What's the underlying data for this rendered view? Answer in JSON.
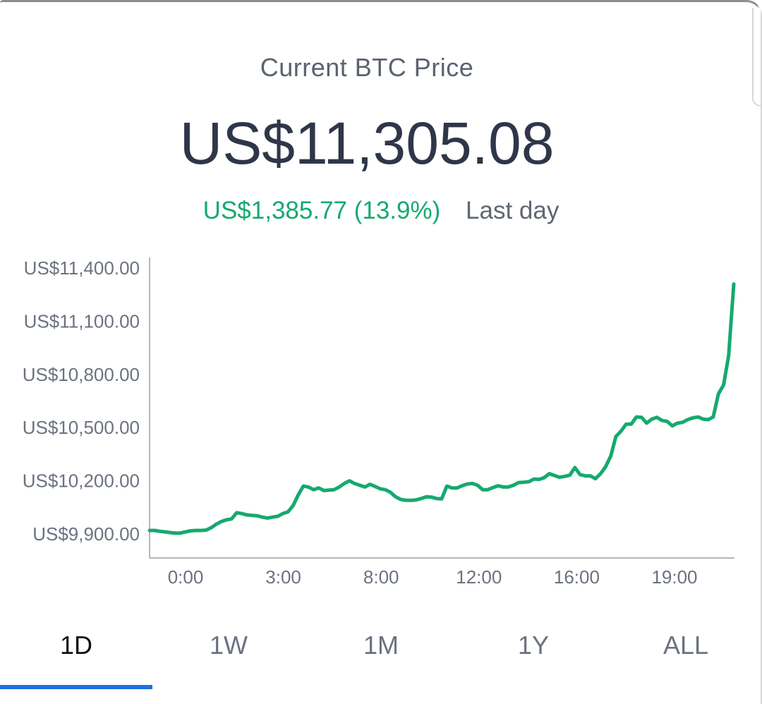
{
  "header": {
    "title": "Current BTC Price",
    "price": "US$11,305.08",
    "change_value": "US$1,385.77 (13.9%)",
    "change_label": "Last day"
  },
  "colors": {
    "accent_green": "#16a970",
    "tab_indicator": "#1f6fe0",
    "price_text": "#2e3648"
  },
  "tabs": [
    {
      "label": "1D",
      "active": true
    },
    {
      "label": "1W",
      "active": false
    },
    {
      "label": "1M",
      "active": false
    },
    {
      "label": "1Y",
      "active": false
    },
    {
      "label": "ALL",
      "active": false
    }
  ],
  "chart_data": {
    "type": "line",
    "title": "",
    "xlabel": "",
    "ylabel": "",
    "ylim": [
      9900,
      11400
    ],
    "y_ticks": [
      "US$11,400.00",
      "US$11,100.00",
      "US$10,800.00",
      "US$10,500.00",
      "US$10,200.00",
      "US$9,900.00"
    ],
    "y_tick_values": [
      11400,
      11100,
      10800,
      10500,
      10200,
      9900
    ],
    "x_ticks": [
      "0:00",
      "3:00",
      "8:00",
      "12:00",
      "16:00",
      "19:00"
    ],
    "grid": false,
    "series": [
      {
        "color": "#16a970",
        "values": [
          9920,
          9920,
          9915,
          9912,
          9908,
          9905,
          9905,
          9912,
          9918,
          9920,
          9920,
          9922,
          9935,
          9955,
          9970,
          9980,
          9985,
          10020,
          10015,
          10008,
          10005,
          10003,
          9995,
          9990,
          9995,
          10000,
          10015,
          10025,
          10060,
          10120,
          10170,
          10165,
          10150,
          10160,
          10145,
          10148,
          10150,
          10165,
          10185,
          10200,
          10185,
          10175,
          10165,
          10180,
          10168,
          10155,
          10150,
          10135,
          10110,
          10095,
          10090,
          10090,
          10092,
          10100,
          10110,
          10108,
          10100,
          10098,
          10170,
          10160,
          10160,
          10172,
          10182,
          10185,
          10175,
          10150,
          10150,
          10162,
          10172,
          10165,
          10165,
          10175,
          10190,
          10192,
          10195,
          10210,
          10208,
          10218,
          10240,
          10230,
          10220,
          10225,
          10232,
          10275,
          10235,
          10228,
          10228,
          10212,
          10240,
          10280,
          10340,
          10450,
          10480,
          10520,
          10520,
          10560,
          10558,
          10525,
          10548,
          10558,
          10540,
          10535,
          10510,
          10525,
          10530,
          10545,
          10555,
          10560,
          10548,
          10545,
          10560,
          10690,
          10740,
          10905,
          11310
        ]
      }
    ]
  }
}
